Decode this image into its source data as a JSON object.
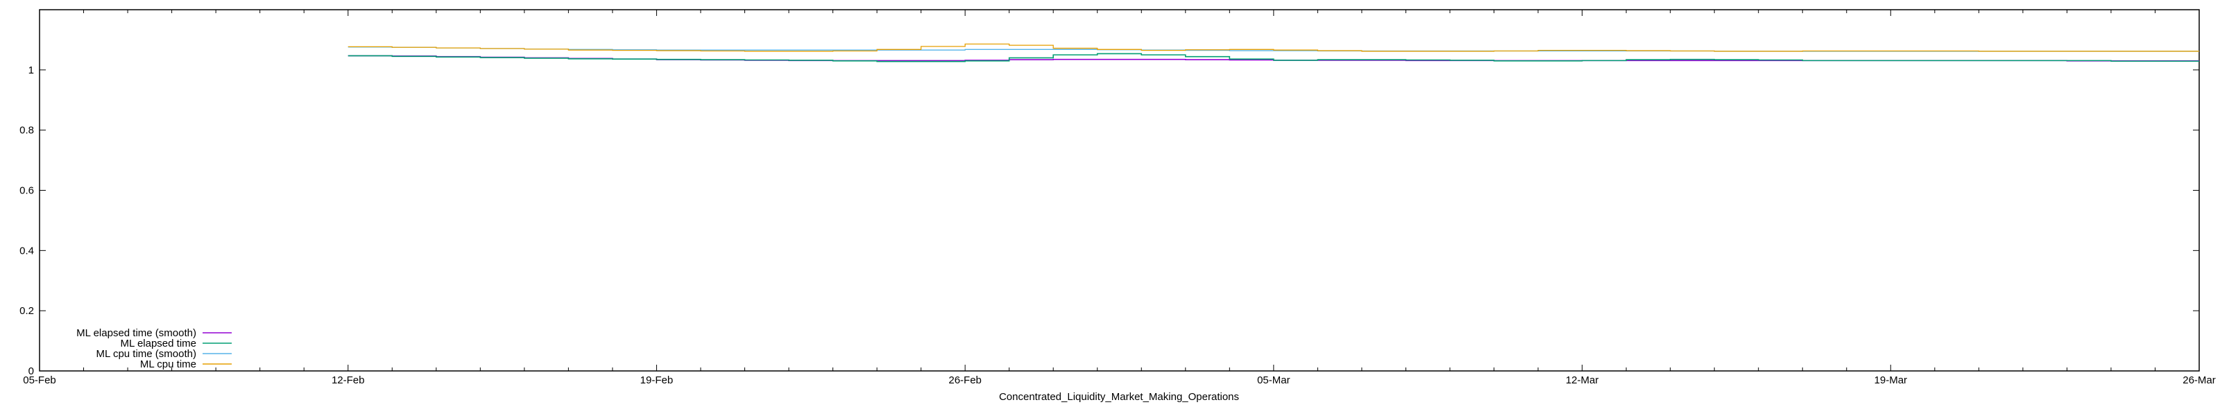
{
  "chart_data": {
    "type": "line",
    "title": "",
    "xlabel": "Concentrated_Liquidity_Market_Making_Operations",
    "ylabel": "",
    "x_start_date": "05-Feb",
    "xlim_days": [
      0,
      49
    ],
    "ylim": [
      0,
      1.2
    ],
    "x_ticks": [
      {
        "day": 0,
        "label": "05-Feb"
      },
      {
        "day": 7,
        "label": "12-Feb"
      },
      {
        "day": 14,
        "label": "19-Feb"
      },
      {
        "day": 21,
        "label": "26-Feb"
      },
      {
        "day": 28,
        "label": "05-Mar"
      },
      {
        "day": 35,
        "label": "12-Mar"
      },
      {
        "day": 42,
        "label": "19-Mar"
      },
      {
        "day": 49,
        "label": "26-Mar"
      }
    ],
    "y_ticks": [
      {
        "value": 0,
        "label": "0"
      },
      {
        "value": 0.2,
        "label": "0.2"
      },
      {
        "value": 0.4,
        "label": "0.4"
      },
      {
        "value": 0.6,
        "label": "0.6"
      },
      {
        "value": 0.8,
        "label": "0.8"
      },
      {
        "value": 1,
        "label": "1"
      }
    ],
    "grid": false,
    "legend_position": "bottom-left",
    "x_days": [
      7,
      8,
      9,
      10,
      11,
      12,
      13,
      14,
      15,
      16,
      17,
      18,
      19,
      20,
      21,
      22,
      23,
      24,
      25,
      26,
      27,
      28,
      29,
      30,
      31,
      32,
      33,
      34,
      35,
      36,
      37,
      38,
      39,
      40,
      41,
      42,
      43,
      44,
      45,
      46,
      47,
      48,
      49
    ],
    "series": [
      {
        "name": "ML elapsed time (smooth)",
        "color": "#9400d3",
        "values": [
          1.047,
          1.046,
          1.044,
          1.042,
          1.04,
          1.038,
          1.036,
          1.034,
          1.033,
          1.032,
          1.031,
          1.031,
          1.031,
          1.031,
          1.032,
          1.034,
          1.035,
          1.035,
          1.035,
          1.034,
          1.033,
          1.032,
          1.032,
          1.032,
          1.031,
          1.031,
          1.031,
          1.031,
          1.031,
          1.031,
          1.031,
          1.031,
          1.031,
          1.031,
          1.031,
          1.031,
          1.031,
          1.031,
          1.031,
          1.03,
          1.03,
          1.03,
          1.03
        ]
      },
      {
        "name": "ML elapsed time",
        "color": "#009e73",
        "values": [
          1.047,
          1.045,
          1.043,
          1.041,
          1.039,
          1.037,
          1.036,
          1.035,
          1.034,
          1.033,
          1.032,
          1.03,
          1.028,
          1.028,
          1.03,
          1.04,
          1.05,
          1.054,
          1.05,
          1.044,
          1.036,
          1.032,
          1.034,
          1.034,
          1.033,
          1.032,
          1.03,
          1.03,
          1.031,
          1.034,
          1.035,
          1.034,
          1.033,
          1.031,
          1.031,
          1.031,
          1.031,
          1.031,
          1.031,
          1.031,
          1.029,
          1.029,
          1.029
        ]
      },
      {
        "name": "ML cpu time (smooth)",
        "color": "#56b4e9",
        "values": [
          1.076,
          1.075,
          1.073,
          1.071,
          1.069,
          1.068,
          1.067,
          1.066,
          1.066,
          1.066,
          1.066,
          1.066,
          1.066,
          1.066,
          1.068,
          1.068,
          1.068,
          1.067,
          1.066,
          1.065,
          1.064,
          1.064,
          1.063,
          1.063,
          1.063,
          1.063,
          1.063,
          1.063,
          1.063,
          1.063,
          1.063,
          1.062,
          1.062,
          1.062,
          1.062,
          1.062,
          1.062,
          1.062,
          1.062,
          1.062,
          1.062,
          1.062,
          1.062
        ]
      },
      {
        "name": "ML cpu time",
        "color": "#e69f00",
        "values": [
          1.077,
          1.075,
          1.073,
          1.071,
          1.069,
          1.066,
          1.065,
          1.064,
          1.063,
          1.062,
          1.062,
          1.063,
          1.068,
          1.078,
          1.086,
          1.082,
          1.072,
          1.068,
          1.065,
          1.067,
          1.068,
          1.066,
          1.064,
          1.062,
          1.062,
          1.062,
          1.063,
          1.065,
          1.065,
          1.064,
          1.063,
          1.062,
          1.062,
          1.063,
          1.063,
          1.063,
          1.063,
          1.062,
          1.062,
          1.062,
          1.062,
          1.062,
          1.062
        ]
      }
    ]
  }
}
